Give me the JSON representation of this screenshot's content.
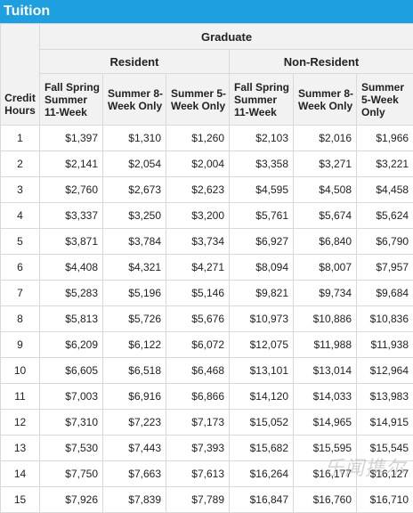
{
  "title": "Tuition",
  "header": {
    "graduate": "Graduate",
    "resident": "Resident",
    "nonresident": "Non-Resident",
    "credit_hours": "Credit Hours",
    "col1": "Fall Spring Summer 11-Week",
    "col2": "Summer 8-Week Only",
    "col3": "Summer 5-Week Only",
    "col4": "Fall Spring Summer 11-Week",
    "col5": "Summer 8-Week Only",
    "col6": "Summer 5-Week Only"
  },
  "rows": [
    [
      "1",
      "$1,397",
      "$1,310",
      "$1,260",
      "$2,103",
      "$2,016",
      "$1,966"
    ],
    [
      "2",
      "$2,141",
      "$2,054",
      "$2,004",
      "$3,358",
      "$3,271",
      "$3,221"
    ],
    [
      "3",
      "$2,760",
      "$2,673",
      "$2,623",
      "$4,595",
      "$4,508",
      "$4,458"
    ],
    [
      "4",
      "$3,337",
      "$3,250",
      "$3,200",
      "$5,761",
      "$5,674",
      "$5,624"
    ],
    [
      "5",
      "$3,871",
      "$3,784",
      "$3,734",
      "$6,927",
      "$6,840",
      "$6,790"
    ],
    [
      "6",
      "$4,408",
      "$4,321",
      "$4,271",
      "$8,094",
      "$8,007",
      "$7,957"
    ],
    [
      "7",
      "$5,283",
      "$5,196",
      "$5,146",
      "$9,821",
      "$9,734",
      "$9,684"
    ],
    [
      "8",
      "$5,813",
      "$5,726",
      "$5,676",
      "$10,973",
      "$10,886",
      "$10,836"
    ],
    [
      "9",
      "$6,209",
      "$6,122",
      "$6,072",
      "$12,075",
      "$11,988",
      "$11,938"
    ],
    [
      "10",
      "$6,605",
      "$6,518",
      "$6,468",
      "$13,101",
      "$13,014",
      "$12,964"
    ],
    [
      "11",
      "$7,003",
      "$6,916",
      "$6,866",
      "$14,120",
      "$14,033",
      "$13,983"
    ],
    [
      "12",
      "$7,310",
      "$7,223",
      "$7,173",
      "$15,052",
      "$14,965",
      "$14,915"
    ],
    [
      "13",
      "$7,530",
      "$7,443",
      "$7,393",
      "$15,682",
      "$15,595",
      "$15,545"
    ],
    [
      "14",
      "$7,750",
      "$7,663",
      "$7,613",
      "$16,264",
      "$16,177",
      "$16,127"
    ],
    [
      "15",
      "$7,926",
      "$7,839",
      "$7,789",
      "$16,847",
      "$16,760",
      "$16,710"
    ]
  ],
  "watermark": "乐闻携尔"
}
